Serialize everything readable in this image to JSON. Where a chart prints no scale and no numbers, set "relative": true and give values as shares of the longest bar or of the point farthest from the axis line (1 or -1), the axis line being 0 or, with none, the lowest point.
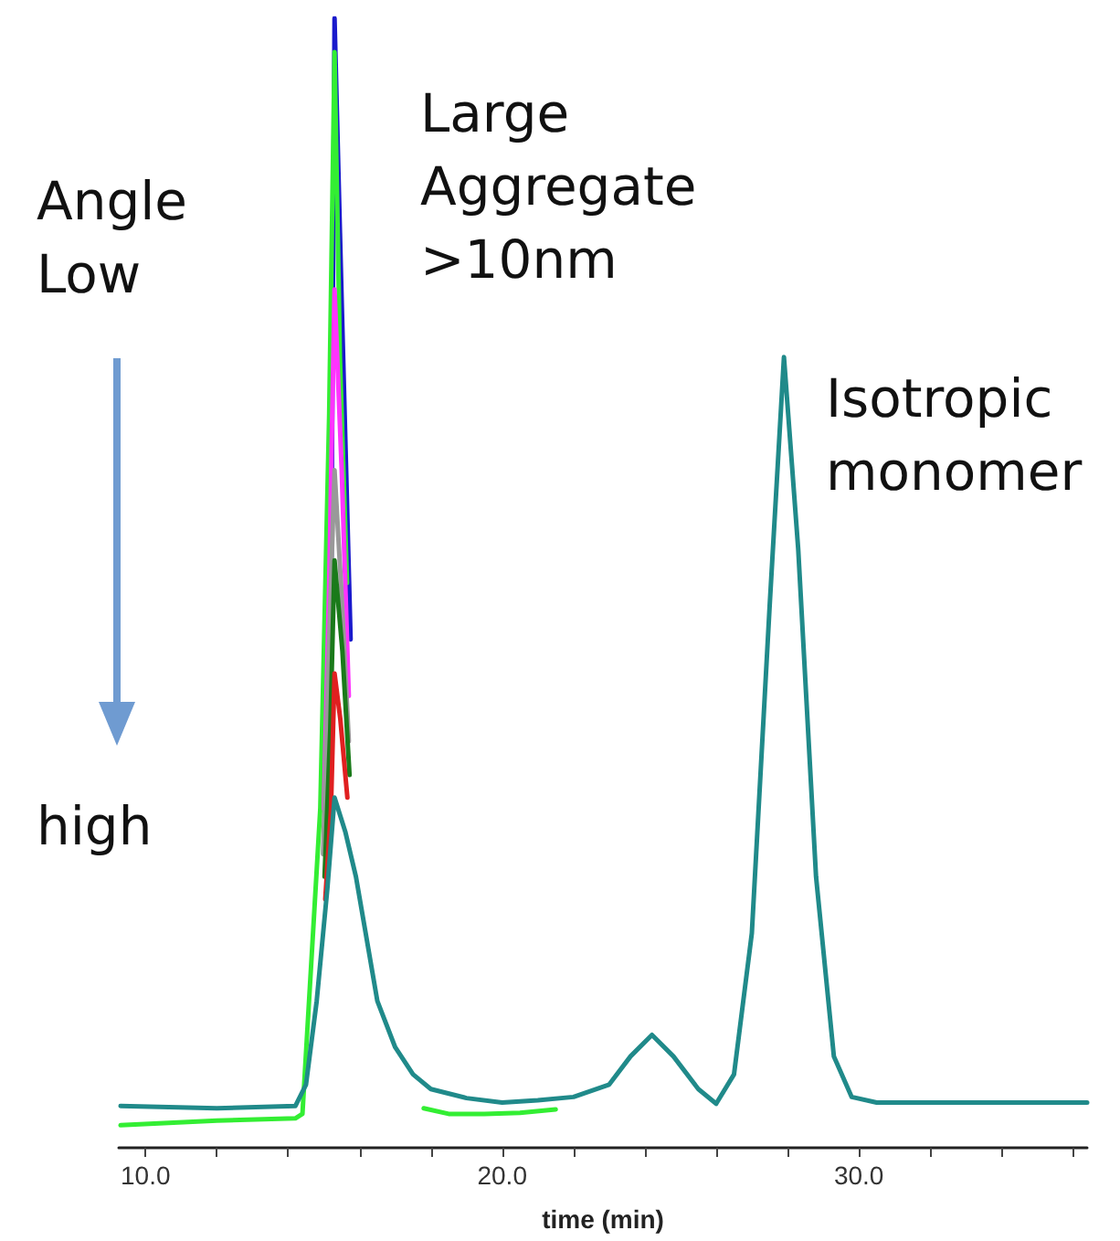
{
  "chart_data": {
    "type": "line",
    "relative": true,
    "xlabel": "time (min)",
    "marker": "none",
    "grid": false,
    "annotations": [
      "Large\nAggregate\n>10nm",
      "Isotropic\nmonomer",
      "Angle\nLow",
      "high"
    ],
    "xlim": [
      9.25,
      36.4
    ],
    "xticks": [
      {
        "value": 10,
        "label": "10.0"
      },
      {
        "value": 12,
        "label": null
      },
      {
        "value": 14,
        "label": null
      },
      {
        "value": 16,
        "label": null
      },
      {
        "value": 18,
        "label": null
      },
      {
        "value": 20,
        "label": "20.0"
      },
      {
        "value": 22,
        "label": null
      },
      {
        "value": 24,
        "label": null
      },
      {
        "value": 26,
        "label": null
      },
      {
        "value": 28,
        "label": null
      },
      {
        "value": 30,
        "label": "30.0"
      },
      {
        "value": 32,
        "label": null
      },
      {
        "value": 34,
        "label": null
      },
      {
        "value": 36,
        "label": null
      }
    ],
    "x": [
      9.3,
      12,
      14.2,
      14.5,
      14.8,
      15.1,
      15.3,
      15.6,
      15.9,
      16.5,
      17,
      17.5,
      18,
      19,
      20,
      21,
      22,
      23,
      23.6,
      24.2,
      24.8,
      25.5,
      26,
      26.5,
      27,
      27.5,
      27.9,
      28.3,
      28.8,
      29.3,
      29.8,
      30.5,
      33,
      36.4
    ],
    "series": [
      {
        "color": "#1a1acc",
        "x": [
          15.2,
          15.3,
          15.5,
          15.75
        ],
        "values": [
          0.45,
          1,
          0.75,
          0.45
        ]
      },
      {
        "color": "#33ee33",
        "x": [
          9.3,
          12,
          14.2,
          14.4,
          14.9,
          15.15,
          15.3,
          15.45,
          15.65,
          null,
          17.8,
          18.5,
          19.5,
          20.5,
          21.5
        ],
        "values": [
          0.02,
          0.024,
          0.026,
          0.03,
          0.3,
          0.65,
          0.97,
          0.7,
          0.5,
          null,
          0.035,
          0.03,
          0.03,
          0.031,
          0.034
        ]
      },
      {
        "color": "#ff33ff",
        "x": [
          15.0,
          15.15,
          15.3,
          15.5,
          15.7
        ],
        "values": [
          0.3,
          0.5,
          0.76,
          0.6,
          0.4
        ]
      },
      {
        "color": "#999999",
        "x": [
          14.98,
          15.12,
          15.3,
          15.48,
          15.7
        ],
        "values": [
          0.26,
          0.42,
          0.6,
          0.5,
          0.36
        ]
      },
      {
        "color": "#1a7a1a",
        "x": [
          15.02,
          15.18,
          15.3,
          15.52,
          15.72
        ],
        "values": [
          0.24,
          0.37,
          0.52,
          0.44,
          0.33
        ]
      },
      {
        "color": "#e02020",
        "x": [
          15.04,
          15.2,
          15.3,
          15.46,
          15.66
        ],
        "values": [
          0.22,
          0.3,
          0.42,
          0.38,
          0.31
        ]
      },
      {
        "color": "#208a8a",
        "values": [
          0.037,
          0.035,
          0.037,
          0.056,
          0.13,
          0.23,
          0.31,
          0.28,
          0.24,
          0.13,
          0.089,
          0.065,
          0.052,
          0.044,
          0.04,
          0.042,
          0.045,
          0.056,
          0.081,
          0.1,
          0.081,
          0.052,
          0.039,
          0.065,
          0.19,
          0.48,
          0.7,
          0.53,
          0.24,
          0.081,
          0.045,
          0.04,
          0.04,
          0.04
        ]
      }
    ]
  }
}
